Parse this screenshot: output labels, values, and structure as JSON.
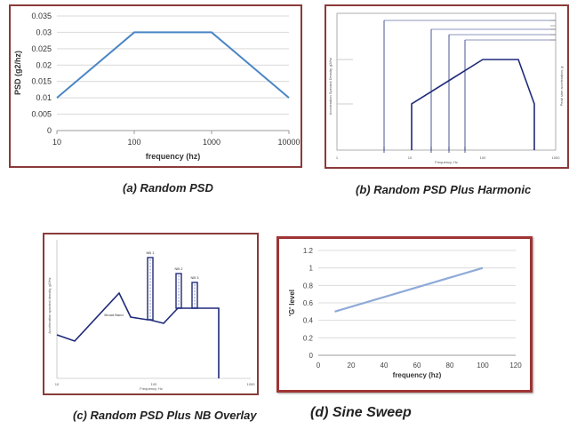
{
  "chart_data": [
    {
      "type": "line",
      "title": "",
      "caption": "(a) Random PSD",
      "xlabel": "frequency (hz)",
      "ylabel": "PSD (g2/hz)",
      "xscale": "log",
      "xticks": [
        "10",
        "100",
        "1000",
        "10000"
      ],
      "yticks": [
        "0",
        "0.005",
        "0.01",
        "0.015",
        "0.02",
        "0.025",
        "0.03",
        "0.035"
      ],
      "ylim": [
        0,
        0.035
      ],
      "grid": true,
      "x": [
        10,
        100,
        1000,
        10000
      ],
      "y": [
        0.01,
        0.03,
        0.03,
        0.01
      ],
      "color": "#4a86c5"
    },
    {
      "type": "line",
      "title": "",
      "caption": "(b) Random PSD Plus Harmonic",
      "xlabel": "Frequency, Hz",
      "ylabel": "Acceleration Spectral Density, g2/Hz",
      "y2label": "Peak sine acceleration, g",
      "xscale": "log",
      "xticks": [
        "1",
        "10",
        "100",
        "1000"
      ],
      "color": "#1f2a7a"
    },
    {
      "type": "line",
      "title": "",
      "caption": "(c) Random PSD Plus NB Overlay",
      "xlabel": "Frequency, Hz",
      "ylabel": "Acceleration spectral density, g2/Hz",
      "xscale": "log",
      "xticks": [
        "10",
        "100",
        "1000"
      ],
      "annotations": [
        "Broad Band",
        "NB 1",
        "NB 2",
        "NB 3"
      ],
      "color": "#1f2a7a"
    },
    {
      "type": "line",
      "title": "",
      "caption": "(d) Sine Sweep",
      "xlabel": "frequency (hz)",
      "ylabel": "'G' level",
      "xticks": [
        "0",
        "20",
        "40",
        "60",
        "80",
        "100",
        "120"
      ],
      "yticks": [
        "0",
        "0.2",
        "0.4",
        "0.6",
        "0.8",
        "1",
        "1.2"
      ],
      "xlim": [
        0,
        120
      ],
      "ylim": [
        0,
        1.2
      ],
      "grid": true,
      "x": [
        10,
        100
      ],
      "y": [
        0.5,
        1.0
      ],
      "color": "#8eaad8"
    }
  ]
}
